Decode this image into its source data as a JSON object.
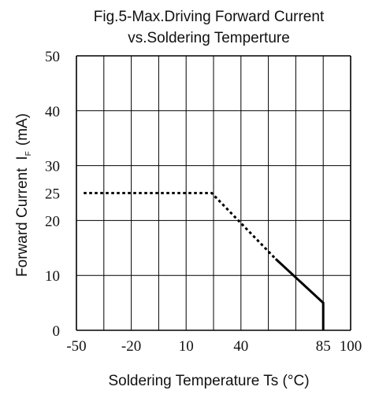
{
  "chart_data": {
    "type": "line",
    "title_line1": "Fig.5-Max.Driving Forward Current",
    "title_line2": "vs.Soldering Temperture",
    "xlabel": "Soldering Temperature Ts (°C)",
    "ylabel_main": "Forward Current",
    "ylabel_symbol": "I",
    "ylabel_subscript": "F",
    "ylabel_unit": "(mA)",
    "xlim": [
      -50,
      100
    ],
    "ylim": [
      0,
      50
    ],
    "grid": true,
    "x_ticks": [
      {
        "value": -50,
        "label": "-50"
      },
      {
        "value": -20,
        "label": "-20"
      },
      {
        "value": 10,
        "label": "10"
      },
      {
        "value": 40,
        "label": "40"
      },
      {
        "value": 85,
        "label": "85"
      },
      {
        "value": 100,
        "label": "100"
      }
    ],
    "x_gridlines": [
      -50,
      -35,
      -20,
      -5,
      10,
      25,
      40,
      55,
      70,
      85,
      100
    ],
    "y_ticks": [
      {
        "value": 0,
        "label": "0"
      },
      {
        "value": 10,
        "label": "10"
      },
      {
        "value": 20,
        "label": "20"
      },
      {
        "value": 25,
        "label": "25"
      },
      {
        "value": 30,
        "label": "30"
      },
      {
        "value": 40,
        "label": "40"
      },
      {
        "value": 50,
        "label": "50"
      }
    ],
    "y_gridlines": [
      0,
      10,
      20,
      30,
      40,
      50
    ],
    "series": [
      {
        "segments": [
          {
            "style": "dotted",
            "points": [
              [
                -46,
                25
              ],
              [
                24,
                25
              ],
              [
                59,
                13
              ]
            ]
          },
          {
            "style": "solid",
            "points": [
              [
                59,
                13
              ],
              [
                85,
                5
              ],
              [
                85,
                0
              ]
            ]
          }
        ]
      }
    ],
    "colors": {
      "line": "#000000",
      "grid": "#000000"
    }
  }
}
